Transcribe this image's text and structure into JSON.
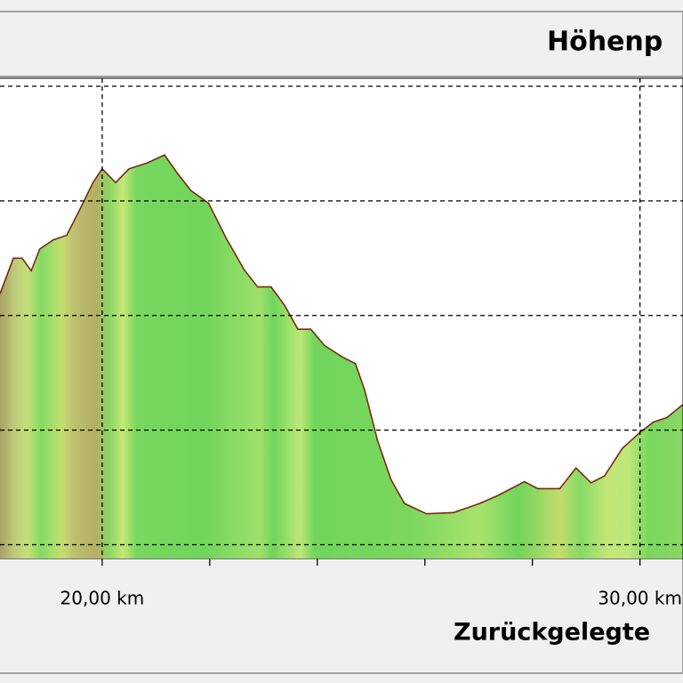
{
  "chart_data": {
    "type": "area",
    "title": "Höhenp",
    "xlabel": "Zurückgelegte",
    "x": [
      18.1,
      18.35,
      18.51,
      18.68,
      18.84,
      19.09,
      19.34,
      19.59,
      19.83,
      20.0,
      20.25,
      20.5,
      20.83,
      21.16,
      21.4,
      21.65,
      21.98,
      22.31,
      22.64,
      22.89,
      23.14,
      23.39,
      23.64,
      23.88,
      24.13,
      24.46,
      24.71,
      24.88,
      25.12,
      25.37,
      25.62,
      26.03,
      26.53,
      27.02,
      27.36,
      27.85,
      28.1,
      28.51,
      28.81,
      29.09,
      29.34,
      29.67,
      30.0,
      30.25,
      30.5,
      30.79
    ],
    "series": [
      {
        "color": "#7a2a10",
        "fill": "#6fd65a",
        "values": [
          2.19,
          2.5,
          2.5,
          2.39,
          2.58,
          2.66,
          2.7,
          2.93,
          3.16,
          3.28,
          3.16,
          3.28,
          3.33,
          3.4,
          3.24,
          3.09,
          2.98,
          2.67,
          2.4,
          2.25,
          2.25,
          2.09,
          1.88,
          1.88,
          1.74,
          1.64,
          1.58,
          1.35,
          0.91,
          0.57,
          0.36,
          0.27,
          0.28,
          0.36,
          0.43,
          0.55,
          0.49,
          0.49,
          0.67,
          0.54,
          0.6,
          0.84,
          0.98,
          1.07,
          1.11,
          1.22
        ]
      }
    ],
    "xlim": [
      18.1,
      30.8
    ],
    "ylim": [
      -0.12,
      4.07
    ],
    "xticks": [
      {
        "value": 20,
        "label": "20,00 km"
      },
      {
        "value": 30,
        "label": "30,00 km"
      }
    ],
    "xminor_ticks": [
      22,
      24,
      26,
      28
    ],
    "yticks": [
      0,
      1,
      2,
      3,
      4
    ],
    "grid": true
  }
}
